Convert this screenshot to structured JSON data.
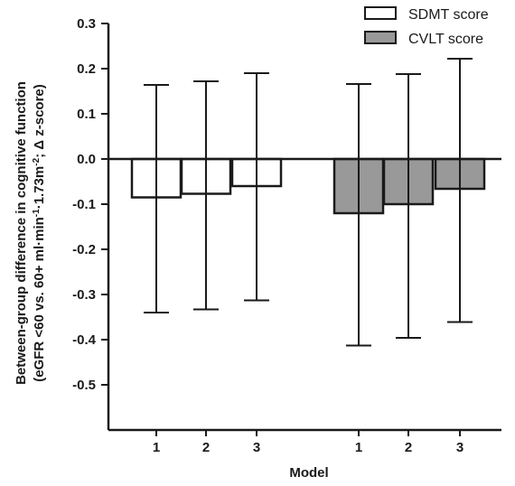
{
  "chart_data": {
    "type": "bar",
    "ylabel_line1": "Between-group difference in cognitive function",
    "ylabel_line2_parts": {
      "a": "(eGFR <60 vs. 60+ ml·min",
      "sup1": "-1",
      "b": "·1.73m",
      "sup2": "-2",
      "c": "; Δ z-score)"
    },
    "xlabel": "Model",
    "ylim": [
      -0.6,
      0.3
    ],
    "yticks": [
      "0.3",
      "0.2",
      "0.1",
      "0.0",
      "-0.1",
      "-0.2",
      "-0.3",
      "-0.4",
      "-0.5"
    ],
    "ytick_values": [
      0.3,
      0.2,
      0.1,
      0.0,
      -0.1,
      -0.2,
      -0.3,
      -0.4,
      -0.5
    ],
    "legend_position": "top-right",
    "error_bars": true,
    "series": [
      {
        "name": "SDMT score",
        "color": "#ffffff",
        "categories": [
          "1",
          "2",
          "3"
        ],
        "values": [
          -0.085,
          -0.077,
          -0.06
        ],
        "ci_low": [
          -0.34,
          -0.333,
          -0.313
        ],
        "ci_high": [
          0.164,
          0.172,
          0.19
        ]
      },
      {
        "name": "CVLT score",
        "color": "#999999",
        "categories": [
          "1",
          "2",
          "3"
        ],
        "values": [
          -0.12,
          -0.1,
          -0.066
        ],
        "ci_low": [
          -0.413,
          -0.396,
          -0.361
        ],
        "ci_high": [
          0.166,
          0.188,
          0.222
        ]
      }
    ]
  }
}
